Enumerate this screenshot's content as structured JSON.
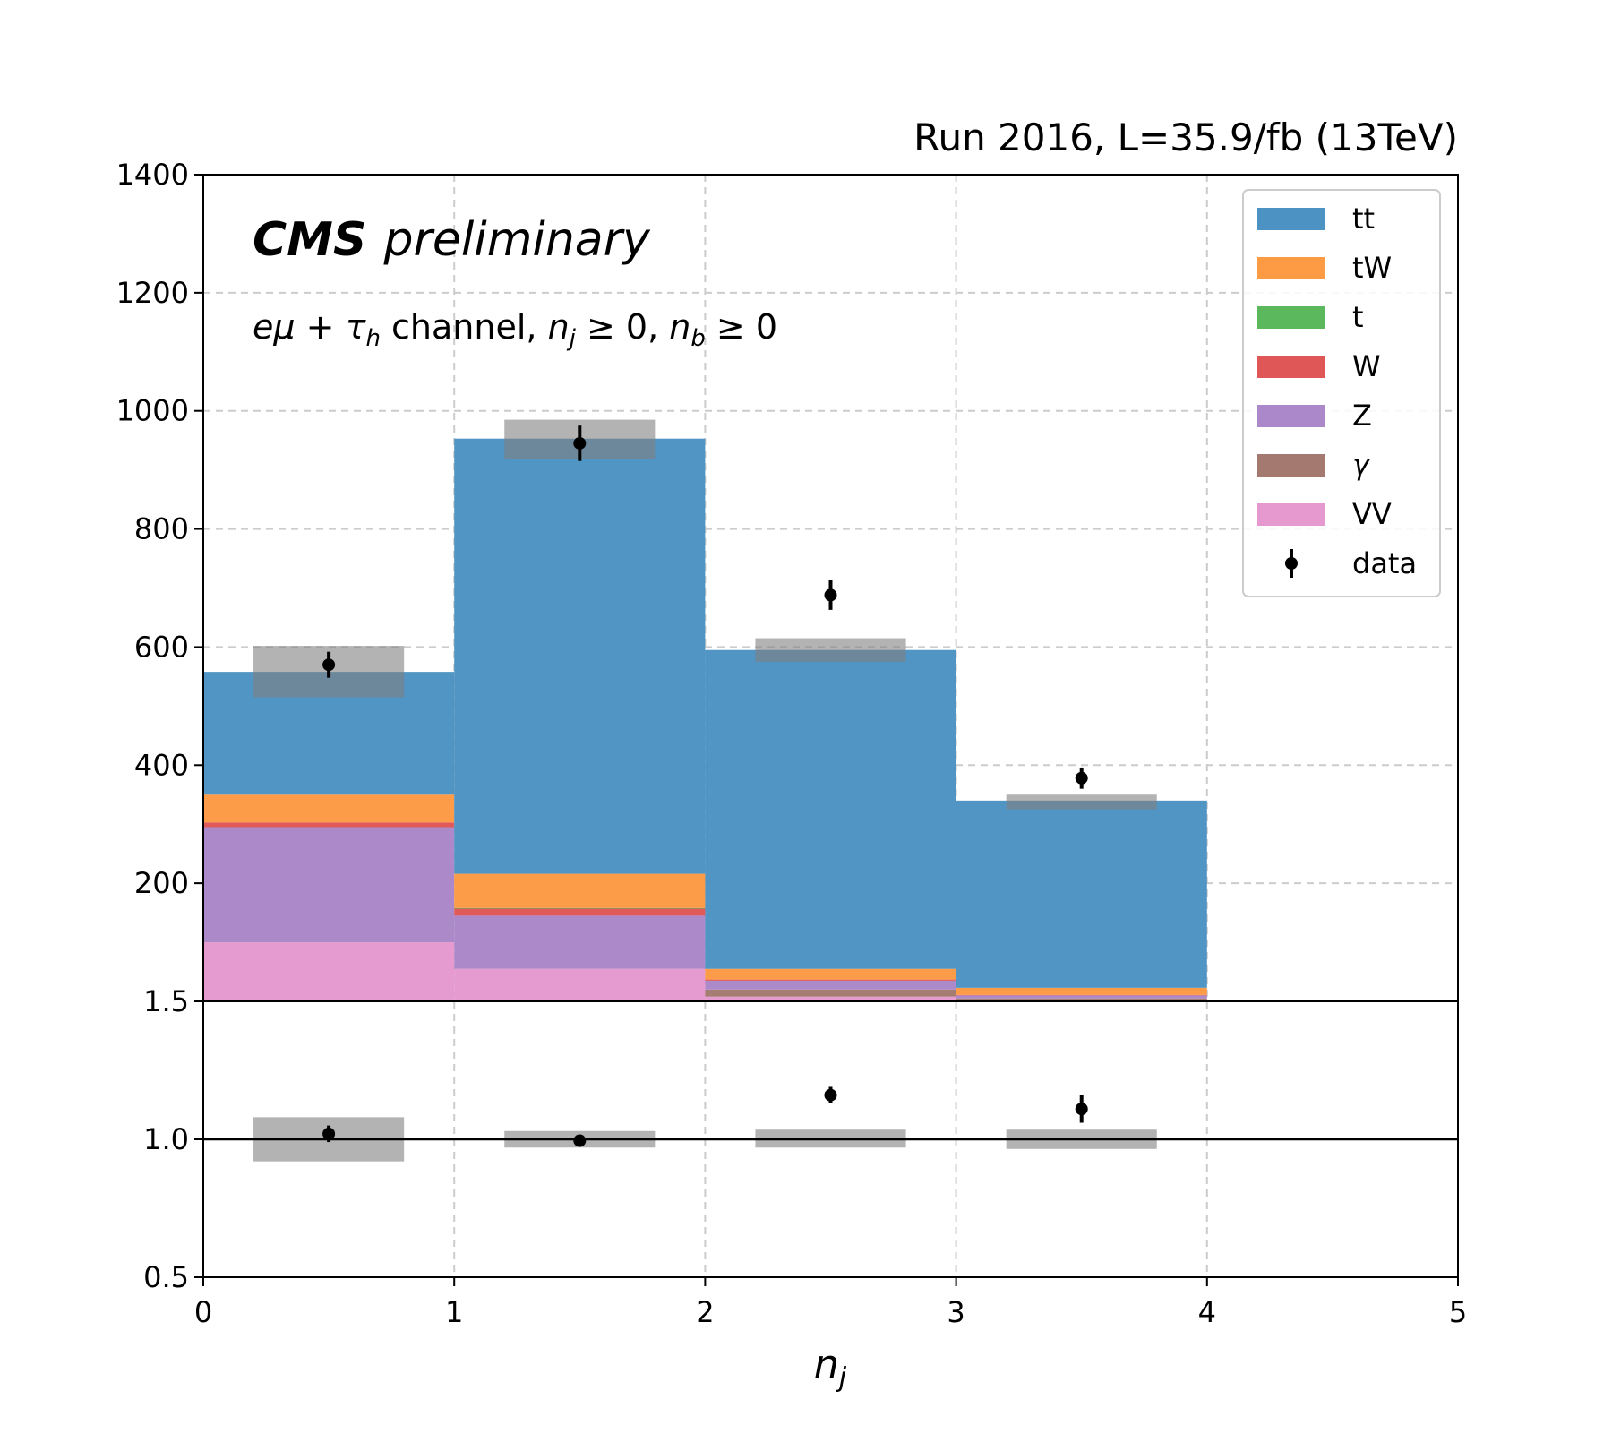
{
  "header": {
    "run_label": "Run 2016, L=35.9/fb (13TeV)",
    "cms_label": "CMS",
    "preliminary_label": "preliminary",
    "channel_label": {
      "e": "e",
      "mu": "μ",
      "plus": " + ",
      "tau": "τ",
      "tau_sub": "h",
      "channel_word": " channel, ",
      "nj": "n",
      "nj_sub": "j",
      "nj_cond": " ≥ 0, ",
      "nb": "n",
      "nb_sub": "b",
      "nb_cond": " ≥ 0"
    }
  },
  "chart_data": {
    "type": "bar",
    "stacked": true,
    "x_bin_edges": [
      0,
      1,
      2,
      3,
      4
    ],
    "xlim": [
      0,
      5
    ],
    "xticks": [
      "0",
      "1",
      "2",
      "3",
      "4",
      "5"
    ],
    "xlabel": {
      "base": "n",
      "sub": "j"
    },
    "upper": {
      "ylim": [
        0,
        1400
      ],
      "yticks": [
        200,
        400,
        600,
        800,
        1000,
        1200,
        1400
      ],
      "ytick_labels": [
        "200",
        "400",
        "600",
        "800",
        "1000",
        "1200",
        "1400"
      ],
      "grid": true,
      "series": [
        {
          "name": "VV",
          "color": "#e699cf",
          "values": [
            100,
            55,
            8,
            3
          ]
        },
        {
          "name": "γ",
          "color": "#a47a70",
          "values": [
            0,
            0,
            12,
            2
          ]
        },
        {
          "name": "Z",
          "color": "#aa88c9",
          "values": [
            195,
            90,
            15,
            5
          ]
        },
        {
          "name": "W",
          "color": "#e05757",
          "values": [
            8,
            12,
            2,
            1
          ]
        },
        {
          "name": "t",
          "color": "#5cb85c",
          "values": [
            0,
            1,
            0,
            0
          ]
        },
        {
          "name": "tW",
          "color": "#fd9a44",
          "values": [
            47,
            58,
            18,
            12
          ]
        },
        {
          "name": "tt",
          "color": "#4c93c3",
          "values": [
            208,
            737,
            540,
            317
          ]
        }
      ],
      "uncertainty_bands": [
        {
          "low": 515,
          "high": 602
        },
        {
          "low": 918,
          "high": 985
        },
        {
          "low": 575,
          "high": 615
        },
        {
          "low": 325,
          "high": 350
        }
      ],
      "data_points": {
        "name": "data",
        "x": [
          0.5,
          1.5,
          2.5,
          3.5
        ],
        "y": [
          570,
          945,
          688,
          378
        ],
        "err": [
          22,
          30,
          25,
          18
        ]
      }
    },
    "ratio": {
      "ylim": [
        0.5,
        1.5
      ],
      "yticks": [
        0.5,
        1.0,
        1.5
      ],
      "ytick_labels": [
        "0.5",
        "1.0",
        "1.5"
      ],
      "reference": 1.0,
      "uncertainty_bands": [
        {
          "low": 0.92,
          "high": 1.08
        },
        {
          "low": 0.97,
          "high": 1.03
        },
        {
          "low": 0.97,
          "high": 1.035
        },
        {
          "low": 0.965,
          "high": 1.035
        }
      ],
      "points": {
        "x": [
          0.5,
          1.5,
          2.5,
          3.5
        ],
        "y": [
          1.02,
          0.995,
          1.16,
          1.11
        ],
        "err": [
          0.03,
          0.02,
          0.03,
          0.05
        ]
      }
    },
    "legend": {
      "placement": "top-right",
      "entries": [
        {
          "label": "tt",
          "color": "#4c93c3",
          "kind": "patch"
        },
        {
          "label": "tW",
          "color": "#fd9a44",
          "kind": "patch"
        },
        {
          "label": "t",
          "color": "#5cb85c",
          "kind": "patch"
        },
        {
          "label": "W",
          "color": "#e05757",
          "kind": "patch"
        },
        {
          "label": "Z",
          "color": "#aa88c9",
          "kind": "patch"
        },
        {
          "label": "γ",
          "color": "#a47a70",
          "kind": "patch"
        },
        {
          "label": "VV",
          "color": "#e699cf",
          "kind": "patch"
        },
        {
          "label": "data",
          "color": "#000000",
          "kind": "errorbar"
        }
      ]
    },
    "colors": {
      "uncertainty": "#808080",
      "grid": "#cccccc",
      "axis": "#000000"
    }
  }
}
